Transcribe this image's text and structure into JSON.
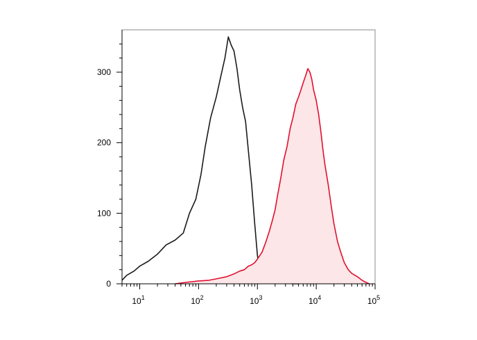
{
  "chart_data": {
    "type": "area",
    "title": "",
    "xlabel": "",
    "ylabel": "",
    "x_scale": "log",
    "xlim": [
      5,
      100000
    ],
    "ylim": [
      0,
      360
    ],
    "x_ticks": [
      {
        "value": 10,
        "base": "10",
        "exp": "1"
      },
      {
        "value": 100,
        "base": "10",
        "exp": "2"
      },
      {
        "value": 1000,
        "base": "10",
        "exp": "3"
      },
      {
        "value": 10000,
        "base": "10",
        "exp": "4"
      },
      {
        "value": 100000,
        "base": "10",
        "exp": "5"
      }
    ],
    "y_ticks": [
      {
        "value": 0,
        "label": "0"
      },
      {
        "value": 100,
        "label": "100"
      },
      {
        "value": 200,
        "label": "200"
      },
      {
        "value": 300,
        "label": "300"
      }
    ],
    "grid": false,
    "legend": "none",
    "series": [
      {
        "color": "#1a1a1a",
        "fill": "none",
        "x": [
          5,
          6,
          8,
          10,
          14,
          20,
          28,
          40,
          55,
          70,
          90,
          110,
          130,
          160,
          200,
          240,
          280,
          320,
          360,
          400,
          450,
          500,
          560,
          630,
          700,
          800,
          900,
          1000,
          1100,
          1250,
          1400,
          1600,
          1800,
          2000,
          2500,
          3000,
          4000,
          5000
        ],
        "values": [
          5,
          12,
          18,
          25,
          32,
          42,
          55,
          62,
          72,
          100,
          120,
          155,
          195,
          235,
          265,
          295,
          320,
          350,
          338,
          330,
          305,
          275,
          250,
          230,
          190,
          140,
          85,
          40,
          20,
          12,
          8,
          5,
          3,
          2,
          1,
          1,
          0,
          0
        ]
      },
      {
        "color": "#e0102e",
        "fill": "#fce6e8",
        "x": [
          40,
          60,
          100,
          150,
          200,
          300,
          400,
          500,
          600,
          700,
          800,
          900,
          1000,
          1200,
          1400,
          1600,
          1800,
          2000,
          2200,
          2500,
          2800,
          3200,
          3600,
          4000,
          4500,
          5000,
          5500,
          6000,
          6600,
          7200,
          7800,
          8400,
          9000,
          10000,
          11000,
          12000,
          13000,
          14000,
          16000,
          18000,
          20000,
          23000,
          26000,
          30000,
          35000,
          40000,
          50000,
          60000,
          70000,
          80000
        ],
        "values": [
          0,
          2,
          4,
          5,
          7,
          10,
          14,
          18,
          20,
          25,
          27,
          30,
          35,
          45,
          60,
          75,
          90,
          105,
          125,
          150,
          175,
          195,
          220,
          235,
          255,
          265,
          275,
          285,
          295,
          305,
          300,
          290,
          275,
          260,
          240,
          215,
          190,
          170,
          140,
          110,
          85,
          60,
          45,
          30,
          20,
          15,
          10,
          5,
          2,
          0
        ]
      }
    ]
  }
}
